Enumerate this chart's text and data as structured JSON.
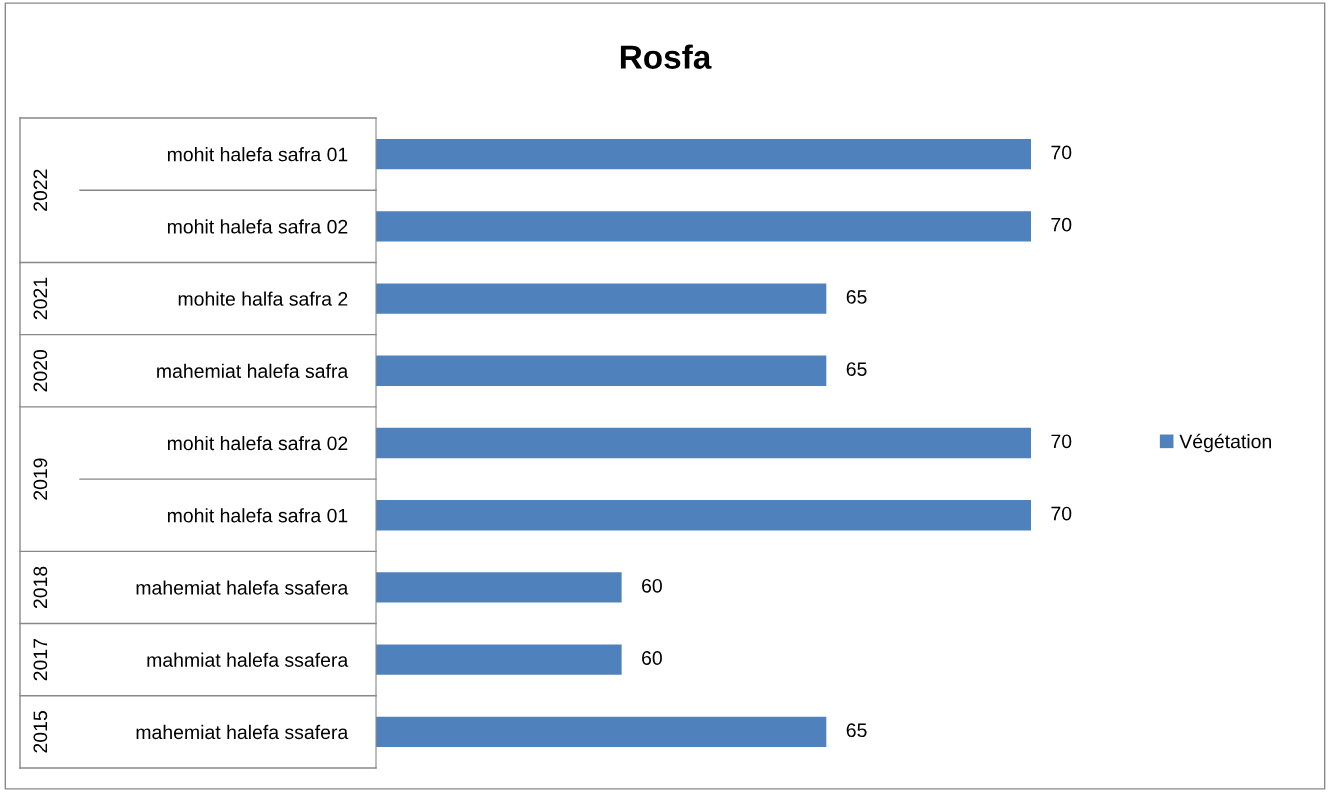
{
  "chart_data": {
    "type": "bar",
    "orientation": "horizontal",
    "title": "Rosfa",
    "categories": [
      "mohit halefa safra 01",
      "mohit halefa safra 02",
      "mohite halfa safra 2",
      "mahemiat halefa safra",
      "mohit halefa safra 02",
      "mohit halefa safra 01",
      "mahemiat halefa ssafera",
      "mahmiat halefa ssafera",
      "mahemiat halefa ssafera"
    ],
    "series": [
      {
        "name": "Végétation",
        "color": "#4f81bd",
        "values": [
          70,
          70,
          65,
          65,
          70,
          70,
          60,
          60,
          65
        ]
      }
    ],
    "xlim": [
      54,
      70
    ],
    "tick_labels": "y",
    "data_labels": true,
    "legend": "right",
    "grid": false,
    "annotations": [
      "2022",
      "2021",
      "2020",
      "2019",
      "2018",
      "2017",
      "2015"
    ]
  }
}
